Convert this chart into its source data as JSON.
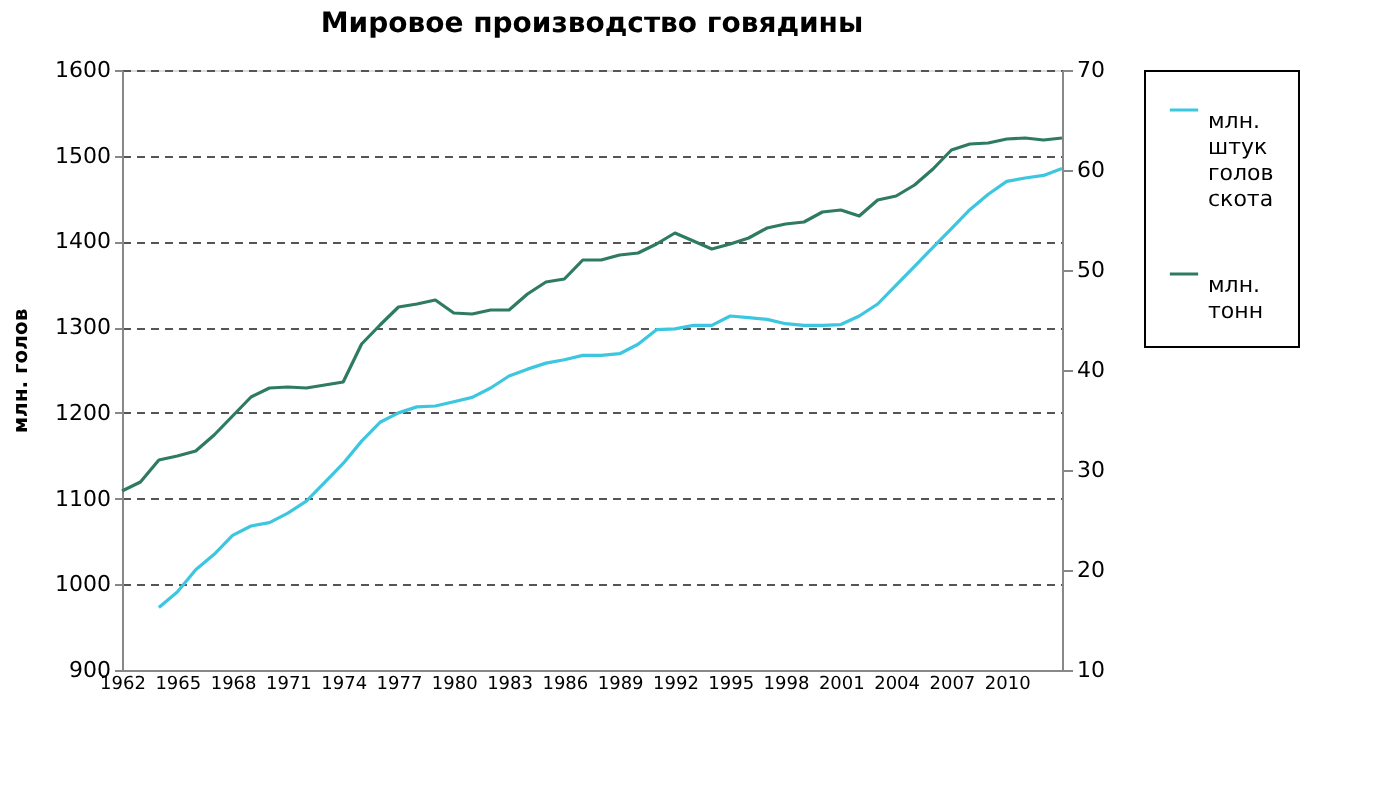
{
  "chart_data": {
    "type": "line",
    "title": "Мировое производство говядины",
    "ylabel": "млн. голов",
    "x": [
      1962,
      1963,
      1964,
      1965,
      1966,
      1967,
      1968,
      1969,
      1970,
      1971,
      1972,
      1973,
      1974,
      1975,
      1976,
      1977,
      1978,
      1979,
      1980,
      1981,
      1982,
      1983,
      1984,
      1985,
      1986,
      1987,
      1988,
      1989,
      1990,
      1991,
      1992,
      1993,
      1994,
      1995,
      1996,
      1997,
      1998,
      1999,
      2000,
      2001,
      2002,
      2003,
      2004,
      2005,
      2006,
      2007,
      2008,
      2009,
      2010,
      2011,
      2012,
      2013
    ],
    "series": [
      {
        "name": "млн. штук голов скота",
        "color": "#3cc6e0",
        "values": [
          null,
          null,
          973,
          991,
          1017,
          1035,
          1057,
          1068,
          1072,
          1083,
          1097,
          1119,
          1141,
          1167,
          1189,
          1200,
          1207,
          1208,
          1213,
          1218,
          1229,
          1243,
          1251,
          1258,
          1262,
          1267,
          1267,
          1269,
          1280,
          1297,
          1298,
          1302,
          1302,
          1313,
          1311,
          1309,
          1304,
          1302,
          1302,
          1303,
          1313,
          1327,
          1349,
          1371,
          1393,
          1415,
          1437,
          1455,
          1470,
          1474,
          1477,
          1485
        ]
      },
      {
        "name": "млн. тонн",
        "color": "#2e7a63",
        "axis": "y2",
        "values": [
          27.9,
          28.8,
          31.0,
          31.4,
          31.9,
          33.5,
          35.4,
          37.3,
          38.2,
          38.3,
          38.2,
          38.5,
          38.8,
          42.6,
          44.5,
          46.3,
          46.6,
          47.0,
          45.7,
          45.6,
          46.0,
          46.0,
          47.6,
          48.8,
          49.1,
          51.0,
          51.0,
          51.5,
          51.7,
          52.6,
          53.7,
          52.9,
          52.1,
          52.6,
          53.2,
          54.2,
          54.6,
          54.8,
          55.8,
          56.0,
          55.4,
          57.0,
          57.4,
          58.5,
          60.1,
          62.0,
          62.6,
          62.7,
          63.1,
          63.2,
          63.0,
          63.2
        ]
      }
    ],
    "xlim": [
      1962,
      2013
    ],
    "xticks": [
      1962,
      1965,
      1968,
      1971,
      1974,
      1977,
      1980,
      1983,
      1986,
      1989,
      1992,
      1995,
      1998,
      2001,
      2004,
      2007,
      2010
    ],
    "ylim": [
      900,
      1600
    ],
    "yticks": [
      900,
      1000,
      1100,
      1200,
      1300,
      1400,
      1500,
      1600
    ],
    "y2lim": [
      10,
      70
    ],
    "y2ticks": [
      10,
      20,
      30,
      40,
      50,
      60,
      70
    ],
    "grid": "y",
    "legend": "right",
    "marker": "none",
    "line_style": "solid"
  }
}
